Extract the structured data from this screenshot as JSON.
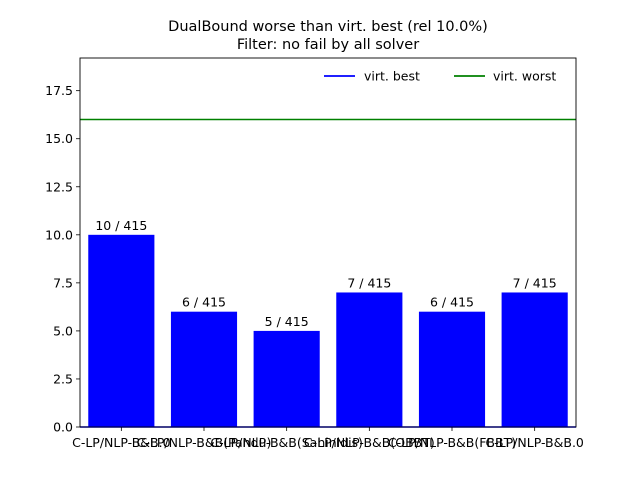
{
  "chart_data": {
    "type": "bar",
    "title": "DualBound worse than virt. best (rel 10.0%)",
    "subtitle": "Filter: no fail by all solver",
    "xlabel": "",
    "ylabel": "",
    "categories": [
      "C-LP/NLP-B&B.0",
      "C-LP/NLP-B&B(Pandu)",
      "C-LP/NLP-B&B(Sahinidis)",
      "C-LP/NLP-B&B(OBBT)",
      "C-LP/NLP-B&B(FBBT)",
      "C-LP/NLP-B&B.0"
    ],
    "tick_labels_printed": [
      "C-LP/NLP-B&B.0",
      "C-LP/NLP-B&B(Pandu)",
      "C-LP/NLP-B&B(Sahinidis)",
      "C-LP/NLP-B&B(OBBT)",
      "C-LP/NLP-B&B(FBBT)",
      "C-LP/NLP-B&B.0"
    ],
    "values": [
      10,
      6,
      5,
      7,
      6,
      7
    ],
    "bar_labels": [
      "10 / 415",
      "6 / 415",
      "5 / 415",
      "7 / 415",
      "6 / 415",
      "7 / 415"
    ],
    "bar_color": "#0000ff",
    "ylim": [
      0,
      19.2
    ],
    "yticks": [
      0.0,
      2.5,
      5.0,
      7.5,
      10.0,
      12.5,
      15.0,
      17.5
    ],
    "ytick_labels": [
      "0.0",
      "2.5",
      "5.0",
      "7.5",
      "10.0",
      "12.5",
      "15.0",
      "17.5"
    ],
    "reference_lines": [
      {
        "name": "virt. best",
        "value": 0,
        "color": "#0000ff"
      },
      {
        "name": "virt. worst",
        "value": 16,
        "color": "#008000"
      }
    ],
    "legend": {
      "placement": "top-right",
      "entries": [
        {
          "label": "virt. best",
          "color": "#0000ff"
        },
        {
          "label": "virt. worst",
          "color": "#008000"
        }
      ]
    },
    "grid": false
  }
}
